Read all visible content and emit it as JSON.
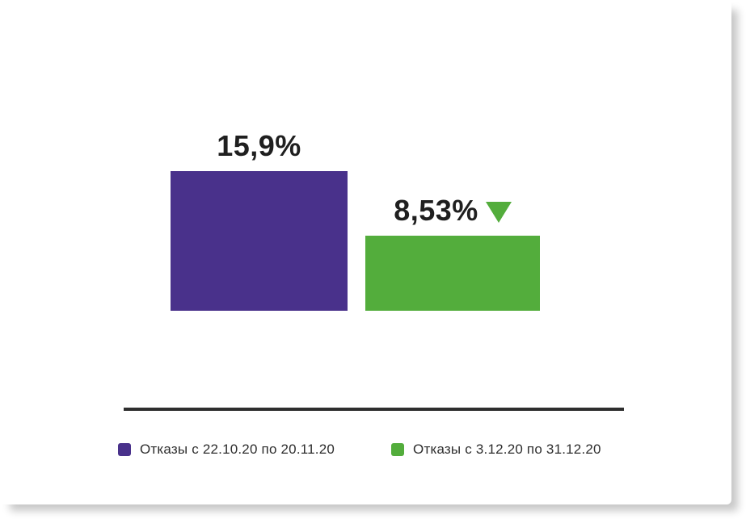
{
  "chart_data": {
    "type": "bar",
    "title": "",
    "xlabel": "",
    "ylabel": "",
    "categories": [
      "Отказы с 22.10.20 по 20.11.20",
      "Отказы с 3.12.20 по 31.12.20"
    ],
    "values": [
      15.9,
      8.53
    ],
    "value_labels": [
      "15,9%",
      "8,53%"
    ],
    "series_colors": [
      "#49318b",
      "#53ad3c"
    ],
    "ylim": [
      0,
      17
    ],
    "grid": false,
    "axis_line_color": "#2e2e2e",
    "legend_position": "bottom",
    "annotations": [
      {
        "bar_index": 1,
        "icon": "triangle-down-icon",
        "color": "#53ad3c"
      }
    ]
  },
  "legend": {
    "items": [
      {
        "label": "Отказы с 22.10.20 по 20.11.20",
        "swatch_color": "#49318b"
      },
      {
        "label": "Отказы с 3.12.20 по 31.12.20",
        "swatch_color": "#53ad3c"
      }
    ]
  },
  "colors": {
    "card_background": "#ffffff",
    "value_text": "#1f1f1f",
    "legend_text": "#2d2d2d"
  }
}
